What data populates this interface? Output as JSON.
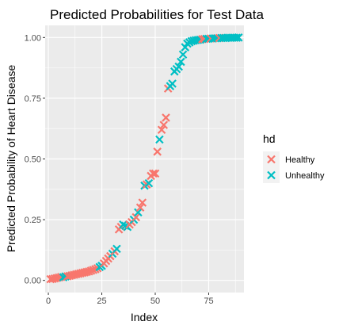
{
  "chart_data": {
    "type": "scatter",
    "title": "Predicted Probabilities for Test Data",
    "xlabel": "Index",
    "ylabel": "Predicted Probability of Heart Disease",
    "xlim": [
      -1.5,
      91.5
    ],
    "ylim": [
      -0.05,
      1.05
    ],
    "x_ticks": [
      0,
      25,
      50,
      75
    ],
    "y_ticks": [
      0.0,
      0.25,
      0.5,
      0.75,
      1.0
    ],
    "x_tick_labels": [
      "0",
      "25",
      "50",
      "75"
    ],
    "y_tick_labels": [
      "0.00",
      "0.25",
      "0.50",
      "0.75",
      "1.00"
    ],
    "grid": true,
    "legend_position": "right",
    "legend": {
      "title": "hd",
      "entries": [
        "Healthy",
        "Unhealthy"
      ]
    },
    "colors": {
      "Healthy": "#F8766D",
      "Unhealthy": "#00BFC4",
      "panel": "#EBEBEB",
      "grid": "#FFFFFF"
    },
    "series": [
      {
        "name": "Healthy",
        "points": [
          [
            1,
            0.005
          ],
          [
            2,
            0.006
          ],
          [
            3,
            0.008
          ],
          [
            4,
            0.01
          ],
          [
            5,
            0.012
          ],
          [
            6,
            0.014
          ],
          [
            9,
            0.017
          ],
          [
            10,
            0.019
          ],
          [
            11,
            0.021
          ],
          [
            12,
            0.023
          ],
          [
            13,
            0.025
          ],
          [
            14,
            0.027
          ],
          [
            15,
            0.029
          ],
          [
            16,
            0.031
          ],
          [
            17,
            0.033
          ],
          [
            18,
            0.035
          ],
          [
            19,
            0.037
          ],
          [
            20,
            0.04
          ],
          [
            21,
            0.043
          ],
          [
            22,
            0.046
          ],
          [
            23,
            0.05
          ],
          [
            26,
            0.07
          ],
          [
            27,
            0.08
          ],
          [
            28,
            0.09
          ],
          [
            29,
            0.1
          ],
          [
            31,
            0.12
          ],
          [
            33,
            0.21
          ],
          [
            34,
            0.22
          ],
          [
            38,
            0.23
          ],
          [
            39,
            0.24
          ],
          [
            41,
            0.26
          ],
          [
            43,
            0.3
          ],
          [
            44,
            0.32
          ],
          [
            46,
            0.395
          ],
          [
            48,
            0.43
          ],
          [
            49,
            0.44
          ],
          [
            50,
            0.44
          ],
          [
            51,
            0.53
          ],
          [
            53,
            0.62
          ],
          [
            54,
            0.64
          ],
          [
            55,
            0.67
          ],
          [
            56,
            0.79
          ],
          [
            72,
            0.993
          ],
          [
            73,
            0.994
          ],
          [
            76,
            0.996
          ],
          [
            80,
            0.998
          ]
        ]
      },
      {
        "name": "Unhealthy",
        "points": [
          [
            7,
            0.013
          ],
          [
            8,
            0.016
          ],
          [
            24,
            0.055
          ],
          [
            25,
            0.06
          ],
          [
            30,
            0.11
          ],
          [
            32,
            0.13
          ],
          [
            35,
            0.23
          ],
          [
            36,
            0.225
          ],
          [
            37,
            0.22
          ],
          [
            40,
            0.25
          ],
          [
            42,
            0.28
          ],
          [
            45,
            0.39
          ],
          [
            47,
            0.4
          ],
          [
            52,
            0.58
          ],
          [
            57,
            0.8
          ],
          [
            58,
            0.81
          ],
          [
            59,
            0.86
          ],
          [
            60,
            0.87
          ],
          [
            61,
            0.88
          ],
          [
            62,
            0.9
          ],
          [
            63,
            0.93
          ],
          [
            64,
            0.96
          ],
          [
            65,
            0.975
          ],
          [
            66,
            0.98
          ],
          [
            67,
            0.985
          ],
          [
            68,
            0.987
          ],
          [
            69,
            0.989
          ],
          [
            70,
            0.99
          ],
          [
            71,
            0.991
          ],
          [
            74,
            0.995
          ],
          [
            75,
            0.995
          ],
          [
            77,
            0.996
          ],
          [
            78,
            0.997
          ],
          [
            79,
            0.997
          ],
          [
            81,
            0.998
          ],
          [
            82,
            0.998
          ],
          [
            83,
            0.998
          ],
          [
            84,
            0.999
          ],
          [
            85,
            0.999
          ],
          [
            86,
            0.999
          ],
          [
            87,
            0.999
          ],
          [
            88,
            0.999
          ],
          [
            89,
            1.0
          ]
        ]
      }
    ]
  }
}
